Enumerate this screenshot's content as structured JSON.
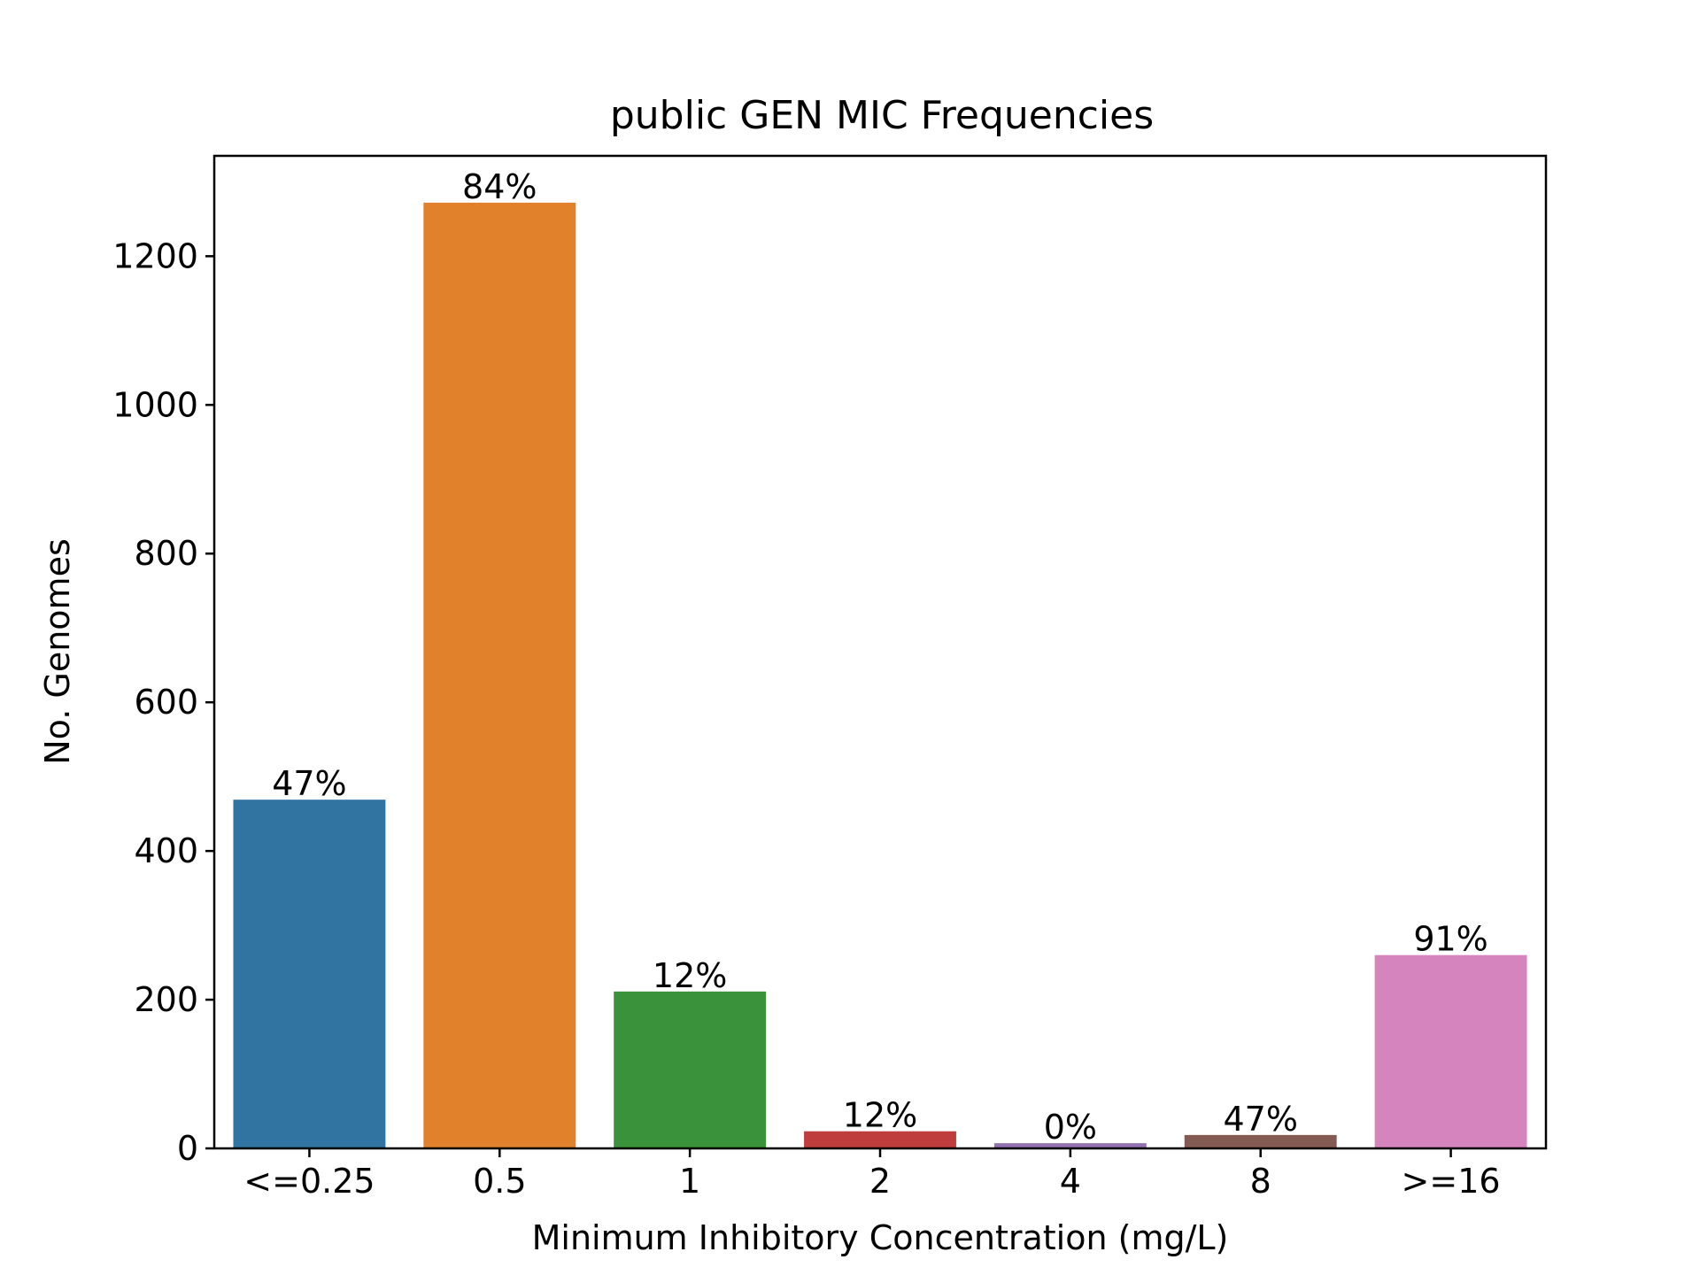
{
  "chart_data": {
    "type": "bar",
    "title": "public GEN MIC Frequencies",
    "xlabel": "Minimum Inhibitory Concentration (mg/L)",
    "ylabel": "No. Genomes",
    "categories": [
      "<=0.25",
      "0.5",
      "1",
      "2",
      "4",
      "8",
      ">=16"
    ],
    "values": [
      469,
      1272,
      211,
      23,
      7,
      18,
      260
    ],
    "data_labels": [
      "47%",
      "84%",
      "12%",
      "12%",
      "0%",
      "47%",
      "91%"
    ],
    "colors": [
      "#3274a1",
      "#e1812c",
      "#3a923a",
      "#c03d3e",
      "#9372b2",
      "#845b53",
      "#d684bd"
    ],
    "ylim": [
      0,
      1335
    ],
    "yticks": [
      0,
      200,
      400,
      600,
      800,
      1000,
      1200
    ],
    "grid": false,
    "legend": "none"
  }
}
